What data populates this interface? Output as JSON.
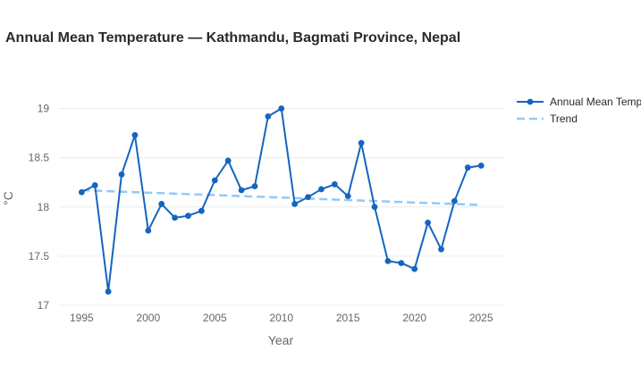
{
  "chart_data": {
    "type": "line",
    "title": "Annual Mean Temperature — Kathmandu, Bagmati Province, Nepal",
    "xlabel": "Year",
    "ylabel": "°C",
    "xlim": [
      1993.3,
      2026.8
    ],
    "ylim": [
      17,
      19.15
    ],
    "x_ticks": [
      1995,
      2000,
      2005,
      2010,
      2015,
      2020,
      2025
    ],
    "y_ticks": [
      17,
      17.5,
      18,
      18.5,
      19
    ],
    "grid": true,
    "legend_position": "top-right",
    "series": [
      {
        "name": "Annual Mean Temp",
        "style": "line-markers",
        "color": "#1565c0",
        "x": [
          1995,
          1996,
          1997,
          1998,
          1999,
          2000,
          2001,
          2002,
          2003,
          2004,
          2005,
          2006,
          2007,
          2008,
          2009,
          2010,
          2011,
          2012,
          2013,
          2014,
          2015,
          2016,
          2017,
          2018,
          2019,
          2020,
          2021,
          2022,
          2023,
          2024,
          2025
        ],
        "values": [
          18.15,
          18.22,
          17.14,
          18.33,
          18.73,
          17.76,
          18.03,
          17.89,
          17.91,
          17.96,
          18.27,
          18.47,
          18.17,
          18.21,
          18.92,
          19.0,
          18.03,
          18.1,
          18.18,
          18.23,
          18.11,
          18.65,
          18.0,
          17.45,
          17.43,
          17.37,
          17.84,
          17.57,
          18.06,
          18.4,
          18.42
        ]
      },
      {
        "name": "Trend",
        "style": "dashed",
        "color": "#90caf9",
        "x": [
          1995,
          2025
        ],
        "values": [
          18.17,
          18.02
        ]
      }
    ]
  }
}
